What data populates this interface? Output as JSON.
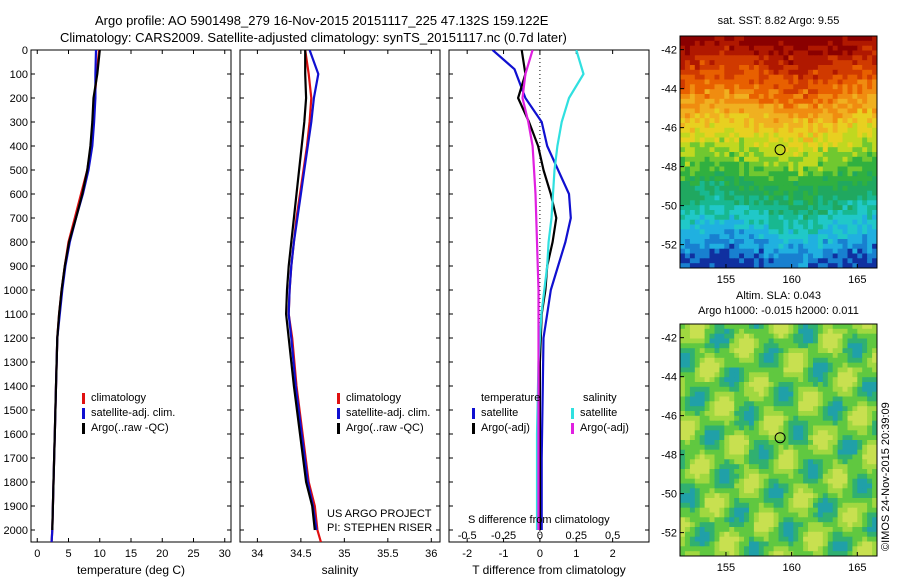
{
  "header": {
    "line1": "Argo profile: AO 5901498_279 16-Nov-2015 20151117_225 47.132S 159.122E",
    "line2": "Climatology: CARS2009. Satellite-adjusted climatology: synTS_20151117.nc (0.7d later)"
  },
  "colors": {
    "climatology": "#e01010",
    "satellite": "#1010d0",
    "argo": "#000000",
    "salinity_sat": "#30e0e0",
    "salinity_argo": "#e020e0"
  },
  "panels": {
    "temperature": {
      "xlabel": "temperature (deg C)",
      "legend": [
        "climatology",
        "satellite-adj. clim.",
        "Argo(..raw -QC)"
      ]
    },
    "salinity": {
      "xlabel": "salinity",
      "legend": [
        "climatology",
        "satellite-adj. clim.",
        "Argo(..raw -QC)"
      ],
      "credit1": "US ARGO PROJECT",
      "credit2": "PI: STEPHEN RISER"
    },
    "difference": {
      "xlabel": "T difference from climatology",
      "top_label": "S difference from climatology",
      "legend_t_head": "temperature",
      "legend_s_head": "salinity",
      "legend_t1": "satellite",
      "legend_t2": "Argo(-adj)",
      "legend_s1": "satellite",
      "legend_s2": "Argo(-adj)"
    }
  },
  "maps": {
    "sst_title": "sat. SST: 8.82 Argo: 9.55",
    "sla_title1": "Altim. SLA: 0.043",
    "sla_title2": "Argo h1000: -0.015 h2000: 0.011",
    "watermark": "©IMOS 24-Nov-2015 20:39:09"
  },
  "chart_data": [
    {
      "type": "line",
      "title": "",
      "xlabel": "temperature (deg C)",
      "ylabel": "",
      "xlim": [
        -1,
        31
      ],
      "ylim": [
        2050,
        0
      ],
      "xticks": [
        0,
        5,
        10,
        15,
        20,
        25,
        30
      ],
      "yticks": [
        0,
        100,
        200,
        300,
        400,
        500,
        600,
        700,
        800,
        900,
        1000,
        1100,
        1200,
        1300,
        1400,
        1500,
        1600,
        1700,
        1800,
        1900,
        2000
      ],
      "series": [
        {
          "name": "climatology",
          "x": [
            9.9,
            9.5,
            9.2,
            8.9,
            8.6,
            8.0,
            7.0,
            6.0,
            5.0,
            4.4,
            3.9,
            3.5,
            3.2,
            3.0,
            2.8,
            2.6,
            2.4,
            2.3
          ],
          "y": [
            0,
            100,
            200,
            300,
            400,
            500,
            600,
            700,
            800,
            900,
            1000,
            1100,
            1200,
            1400,
            1600,
            1800,
            2000,
            2050
          ]
        },
        {
          "name": "satellite-adj. clim.",
          "x": [
            9.4,
            9.3,
            9.3,
            9.1,
            8.8,
            8.2,
            7.3,
            6.2,
            5.2,
            4.5,
            4.0,
            3.6,
            3.2,
            3.0,
            2.8,
            2.6,
            2.4,
            2.3
          ],
          "y": [
            0,
            100,
            200,
            300,
            400,
            500,
            600,
            700,
            800,
            900,
            1000,
            1100,
            1200,
            1400,
            1600,
            1800,
            2000,
            2050
          ]
        },
        {
          "name": "Argo(..raw -QC)",
          "x": [
            10.0,
            9.6,
            9.0,
            8.8,
            8.5,
            8.0,
            7.2,
            6.2,
            5.1,
            4.4,
            3.9,
            3.5,
            3.2,
            3.0,
            2.8,
            2.6,
            2.4
          ],
          "y": [
            0,
            100,
            200,
            300,
            400,
            500,
            600,
            700,
            800,
            900,
            1000,
            1100,
            1200,
            1400,
            1600,
            1800,
            2000
          ]
        }
      ]
    },
    {
      "type": "line",
      "title": "",
      "xlabel": "salinity",
      "ylabel": "",
      "xlim": [
        33.8,
        36.1
      ],
      "ylim": [
        2050,
        0
      ],
      "xticks": [
        34,
        34.5,
        35,
        35.5,
        36
      ],
      "series": [
        {
          "name": "climatology",
          "x": [
            34.55,
            34.59,
            34.62,
            34.6,
            34.57,
            34.53,
            34.49,
            34.45,
            34.42,
            34.39,
            34.37,
            34.36,
            34.4,
            34.45,
            34.52,
            34.59,
            34.66,
            34.69,
            34.73
          ],
          "y": [
            0,
            100,
            200,
            300,
            400,
            500,
            600,
            700,
            800,
            900,
            1000,
            1100,
            1200,
            1400,
            1600,
            1800,
            1900,
            2000,
            2050
          ]
        },
        {
          "name": "satellite-adj. clim.",
          "x": [
            34.6,
            34.7,
            34.65,
            34.62,
            34.58,
            34.54,
            34.5,
            34.46,
            34.42,
            34.39,
            34.37,
            34.36,
            34.39,
            34.44,
            34.51,
            34.58,
            34.64,
            34.68
          ],
          "y": [
            0,
            100,
            200,
            300,
            400,
            500,
            600,
            700,
            800,
            900,
            1000,
            1100,
            1200,
            1400,
            1600,
            1800,
            1900,
            2000
          ]
        },
        {
          "name": "Argo(..raw -QC)",
          "x": [
            34.55,
            34.55,
            34.56,
            34.54,
            34.51,
            34.48,
            34.45,
            34.42,
            34.39,
            34.36,
            34.34,
            34.33,
            34.36,
            34.42,
            34.49,
            34.56,
            34.63,
            34.66
          ],
          "y": [
            0,
            100,
            200,
            300,
            400,
            500,
            600,
            700,
            800,
            900,
            1000,
            1100,
            1200,
            1400,
            1600,
            1800,
            1900,
            2000
          ]
        }
      ]
    },
    {
      "type": "line",
      "title": "",
      "xlabel": "T difference from climatology",
      "ylabel": "",
      "xlim": [
        -2.5,
        3
      ],
      "ylim": [
        2050,
        0
      ],
      "xticks": [
        -2,
        -1,
        0,
        1,
        2
      ],
      "top_xlabel": "S difference from climatology",
      "top_xticks": [
        -0.5,
        -0.25,
        0,
        0.25,
        0.5
      ],
      "series": [
        {
          "name": "temperature satellite",
          "x": [
            -1.3,
            -0.7,
            -0.4,
            0.05,
            0.2,
            0.5,
            0.8,
            0.85,
            0.7,
            0.5,
            0.3,
            0.2,
            0.1,
            0.08,
            0.05,
            0.05
          ],
          "y": [
            0,
            80,
            200,
            300,
            400,
            500,
            600,
            700,
            800,
            900,
            1000,
            1100,
            1200,
            1400,
            1700,
            2000
          ]
        },
        {
          "name": "temperature Argo(-adj)",
          "x": [
            -0.5,
            -0.4,
            -0.6,
            -0.3,
            -0.05,
            0.1,
            0.3,
            0.45,
            0.35,
            0.2,
            0.15,
            0.05,
            0.0,
            0.0,
            0.0
          ],
          "y": [
            0,
            100,
            200,
            300,
            400,
            500,
            600,
            700,
            800,
            900,
            1000,
            1100,
            1300,
            1600,
            2000
          ]
        },
        {
          "name": "salinity satellite",
          "x": [
            0.25,
            0.3,
            0.2,
            0.15,
            0.12,
            0.1,
            0.09,
            0.08,
            0.06,
            0.05,
            0.03,
            0.01,
            -0.01,
            -0.02,
            -0.02
          ],
          "y": [
            0,
            100,
            200,
            300,
            400,
            500,
            600,
            700,
            800,
            900,
            1000,
            1100,
            1300,
            1600,
            2000
          ]
        },
        {
          "name": "salinity Argo(-adj)",
          "x": [
            -0.05,
            -0.1,
            -0.12,
            -0.08,
            -0.05,
            -0.03,
            -0.02,
            -0.01,
            -0.01,
            -0.01,
            -0.01,
            -0.01,
            -0.01
          ],
          "y": [
            0,
            100,
            200,
            300,
            400,
            600,
            800,
            1000,
            1200,
            1400,
            1600,
            1800,
            2000
          ]
        }
      ]
    },
    {
      "type": "heatmap",
      "title": "sat. SST: 8.82 Argo: 9.55",
      "xlim": [
        151.5,
        166.5
      ],
      "ylim": [
        -53.2,
        -41.3
      ],
      "xticks": [
        155,
        160,
        165
      ],
      "yticks": [
        -42,
        -44,
        -46,
        -48,
        -50,
        -52
      ],
      "marker": {
        "lon": 159.122,
        "lat": -47.132
      }
    },
    {
      "type": "heatmap",
      "title": "Altim. SLA: 0.043",
      "xlim": [
        151.5,
        166.5
      ],
      "ylim": [
        -53.2,
        -41.3
      ],
      "xticks": [
        155,
        160,
        165
      ],
      "yticks": [
        -42,
        -44,
        -46,
        -48,
        -50,
        -52
      ],
      "marker": {
        "lon": 159.122,
        "lat": -47.132
      }
    }
  ]
}
